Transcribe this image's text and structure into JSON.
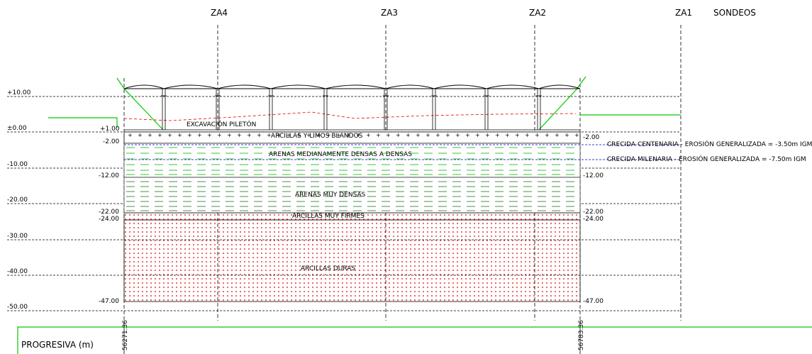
{
  "header": {
    "boreholes": [
      "ZA4",
      "ZA3",
      "ZA2",
      "ZA1"
    ],
    "sondeos_label": "SONDEOS"
  },
  "elevation_labels": [
    "+10.00",
    "±0.00",
    "-10.00",
    "-20.00",
    "-30.00",
    "-40.00",
    "-50.00"
  ],
  "left_level_labels": [
    "+1.00",
    "-2.00",
    "-12.00",
    "-22.00",
    "-24.00",
    "-47.00"
  ],
  "right_level_labels": [
    "-2.00",
    "-12.00",
    "-22.00",
    "-24.00",
    "-47.00"
  ],
  "strata": {
    "excavation": "EXCAVACIÓN PILETÓN",
    "soft_clays": "ARCILLAS Y LIMOS BLANDOS",
    "medium_sands": "ARENAS MEDIANAMENTE DENSAS A DENSAS",
    "dense_sands": "ARENAS MUY DENSAS",
    "firm_clays": "ARCILLAS MUY FIRMES",
    "hard_clays": "ARCILLAS DURAS"
  },
  "flood_notes": {
    "centennial": "CRECIDA CENTENARIA - EROSIÓN GENERALIZADA = -3.50m IGM",
    "millennial": "CRECIDA MILENARIA - EROSIÓN GENERALIZADA = -7.50m IGM"
  },
  "progressive": {
    "label": "PROGRESIVA (m)",
    "start": "56271.36",
    "end": "56783.36"
  },
  "colors": {
    "outline": "#000000",
    "ground": "#00cc00",
    "sand_dash": "#00aa00",
    "dense_sand_dash": "#1a6b1a",
    "clay_dots": "#e00000",
    "erosion_line": "#0000cc"
  }
}
